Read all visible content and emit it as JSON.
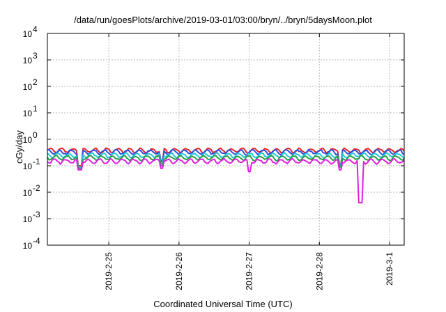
{
  "chart_data": {
    "type": "line",
    "title": "/data/run/goesPlots/archive/2019-03-01/03:00/bryn/../bryn/5daysMoon.plot",
    "xlabel": "Coordinated Universal Time (UTC)",
    "ylabel": "cGy/day",
    "yscale": "log",
    "ylim": [
      0.0001,
      10000
    ],
    "xlim": [
      "2019-02-24T03:00",
      "2019-03-01T05:00"
    ],
    "grid": true,
    "legend": "none",
    "y_ticks": [
      {
        "base": "10",
        "exp": "-4"
      },
      {
        "base": "10",
        "exp": "-3"
      },
      {
        "base": "10",
        "exp": "-2"
      },
      {
        "base": "10",
        "exp": "-1"
      },
      {
        "base": "10",
        "exp": "0"
      },
      {
        "base": "10",
        "exp": "1"
      },
      {
        "base": "10",
        "exp": "2"
      },
      {
        "base": "10",
        "exp": "3"
      },
      {
        "base": "10",
        "exp": "4"
      }
    ],
    "x_ticks": [
      {
        "label": "2019-2-25",
        "date": "2019-02-25T00:00"
      },
      {
        "label": "2019-2-26",
        "date": "2019-02-26T00:00"
      },
      {
        "label": "2019-2-27",
        "date": "2019-02-27T00:00"
      },
      {
        "label": "2019-2-28",
        "date": "2019-02-28T00:00"
      },
      {
        "label": "2019-3-1",
        "date": "2019-03-01T00:00"
      }
    ],
    "series": [
      {
        "color": "#e8242c",
        "baseline": 0.38,
        "dips": [
          {
            "x": "2019-02-24T14:00",
            "y": 0.1
          },
          {
            "x": "2019-02-25T18:00",
            "y": 0.15
          },
          {
            "x": "2019-02-28T07:00",
            "y": 0.12
          }
        ]
      },
      {
        "color": "#2e4fdc",
        "baseline": 0.33,
        "dips": [
          {
            "x": "2019-02-24T14:00",
            "y": 0.09
          },
          {
            "x": "2019-02-25T18:00",
            "y": 0.14
          },
          {
            "x": "2019-02-28T07:00",
            "y": 0.11
          }
        ]
      },
      {
        "color": "#20c8d8",
        "baseline": 0.25,
        "dips": [
          {
            "x": "2019-02-24T14:00",
            "y": 0.09
          },
          {
            "x": "2019-02-25T18:00",
            "y": 0.12
          },
          {
            "x": "2019-02-28T07:00",
            "y": 0.1
          }
        ]
      },
      {
        "color": "#2a9a48",
        "baseline": 0.2,
        "dips": [
          {
            "x": "2019-02-24T14:00",
            "y": 0.08
          },
          {
            "x": "2019-02-25T18:00",
            "y": 0.1
          },
          {
            "x": "2019-02-28T07:00",
            "y": 0.09
          }
        ]
      },
      {
        "color": "#e020e0",
        "baseline": 0.15,
        "dips": [
          {
            "x": "2019-02-24T14:00",
            "y": 0.07
          },
          {
            "x": "2019-02-25T18:00",
            "y": 0.08
          },
          {
            "x": "2019-02-27T00:00",
            "y": 0.06
          },
          {
            "x": "2019-02-28T07:00",
            "y": 0.07
          },
          {
            "x": "2019-02-28T14:00",
            "y": 0.004
          }
        ]
      }
    ]
  }
}
